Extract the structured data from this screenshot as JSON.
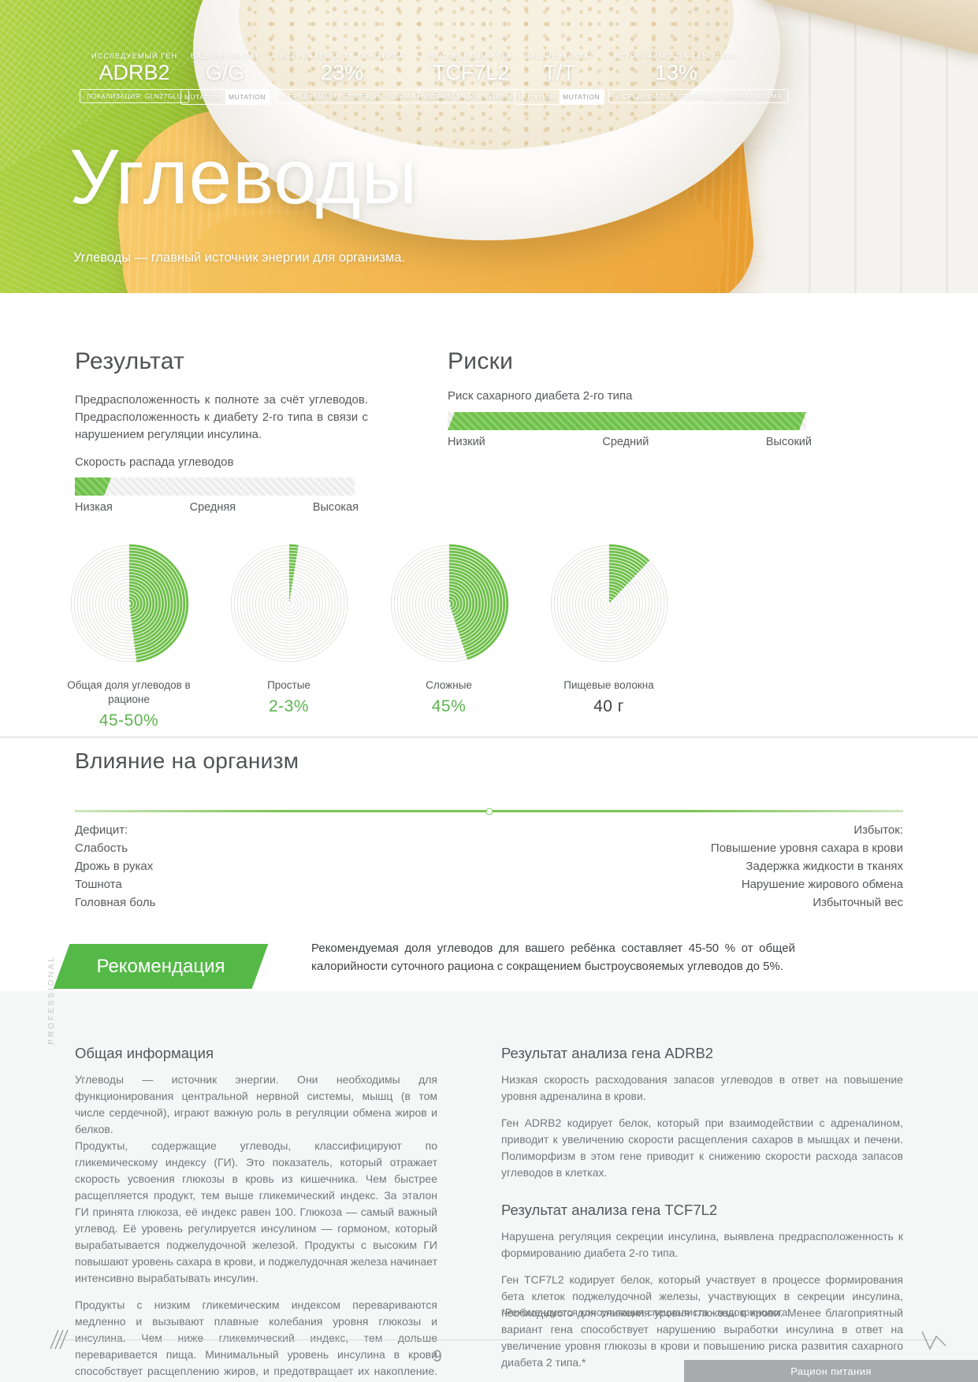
{
  "hero": {
    "title": "Углеводы",
    "subtitle": "Углеводы — главный источник энергии для организма.",
    "genes": [
      {
        "gene_label": "ИССЛЕДУЕМЫЙ ГЕН",
        "gene_name": "ADRB2",
        "localization": "ЛОКАЛИЗАЦИЯ: GLN27GLU",
        "result_label": "ВАШ РЕЗУЛЬТАТ",
        "result_value": "G/G",
        "toggle_left": "MUTATION",
        "toggle_right": "MUTATION",
        "frequency_label": "ВСТРЕЧАЕМОСТЬ ГЕНОТИПА",
        "frequency_value": "23%",
        "population": "В СРЕДНЕМ ПО ПОПУЛЯЦИИ: NORMA / NORMA"
      },
      {
        "gene_label": "ИССЛЕДУЕМЫЙ ГЕН",
        "gene_name": "TCF7L2",
        "localization": "ЛОКАЛИЗАЦИЯ: INTRON3",
        "result_label": "ВАШ РЕЗУЛЬТАТ",
        "result_value": "T/T",
        "toggle_left": "MUTATION",
        "toggle_right": "MUTATION",
        "frequency_label": "ВСТРЕЧАЕМОСТЬ ГЕНОТИПА",
        "frequency_value": "13%",
        "population": "В СРЕДНЕМ ПО ПОПУЛЯЦИИ: NORMA / NORMA"
      }
    ]
  },
  "result": {
    "title": "Результат",
    "text": "Предрасположенность к полноте за счёт углеводов. Предрасположенность к диабету 2-го типа в связи с нарушением регуляции инсулина."
  },
  "risks": {
    "title": "Риски"
  },
  "chart_data": [
    {
      "type": "bar",
      "title": "Скорость распада углеводов",
      "categories": [
        "Низкая",
        "Средняя",
        "Высокая"
      ],
      "values": [
        13
      ],
      "value_meaning": "низкая скорость распада углеводов",
      "range": [
        0,
        100
      ]
    },
    {
      "type": "bar",
      "title": "Риск сахарного диабета 2-го типа",
      "categories": [
        "Низкий",
        "Средний",
        "Высокий"
      ],
      "values": [
        100
      ],
      "value_meaning": "высокий риск",
      "range": [
        0,
        100
      ]
    },
    {
      "type": "pie",
      "title": "Общая доля углеводов в рационе",
      "value_label": "45-50%",
      "percent": 48,
      "color": "#5cb44d"
    },
    {
      "type": "pie",
      "title": "Простые",
      "value_label": "2-3%",
      "percent": 2.5,
      "color": "#5cb44d"
    },
    {
      "type": "pie",
      "title": "Сложные",
      "value_label": "45%",
      "percent": 45,
      "color": "#5cb44d"
    },
    {
      "type": "pie",
      "title": "Пищевые волокна",
      "value_label": "40 г",
      "percent": 12,
      "color": "#414245"
    }
  ],
  "influence": {
    "title": "Влияние на организм",
    "deficit": {
      "title": "Дефицит:",
      "items": [
        "Слабость",
        "Дрожь в руках",
        "Тошнота",
        "Головная боль"
      ]
    },
    "excess": {
      "title": "Избыток:",
      "items": [
        "Повышение уровня сахара в крови",
        "Задержка жидкости в тканях",
        "Нарушение жирового обмена",
        "Избыточный вес"
      ]
    }
  },
  "recommendation": {
    "title": "Рекомендация",
    "text": "Рекомендуемая доля углеводов для вашего ребёнка составляет 45-50 % от общей калорийности суточного рациона с сокращением быстроусвояемых углеводов до 5%."
  },
  "info": {
    "title": "Общая информация",
    "paragraphs": [
      "Углеводы — источник энергии. Они необходимы для функционирования центральной нервной системы, мышц (в том числе сердечной), играют важную роль в регуляции обмена жиров и белков.",
      "Продукты, содержащие углеводы, классифицируют по гликемическому индексу (ГИ). Это показатель, который отражает скорость усвоения глюкозы в кровь из кишечника. Чем быстрее расщепляется продукт, тем выше гликемический индекс. За эталон ГИ принята глюкоза, её индекс равен 100. Глюкоза — самый важный углевод. Её уровень регулируется инсулином — гормоном, который вырабатывается поджелудочной железой. Продукты с высоким ГИ повышают уровень сахара в крови, и поджелудочная железа начинает интенсивно вырабатывать инсулин.",
      "Продукты с низким гликемическим индексом перевариваются медленно и вызывают плавные колебания уровня глюкозы и инсулина. Чем ниже гликемический индекс, тем дольше переваривается пища. Минимальный уровень инсулина в крови способствует расщеплению жиров, и предотвращает их накопление. Медленное усвоение пищи нормализует вес и обеспечивает долгое чувство насыщения."
    ]
  },
  "gene_results": [
    {
      "title": "Результат анализа гена ADRB2",
      "paragraphs": [
        "Низкая скорость расходования запасов углеводов в ответ на повышение уровня адреналина в крови.",
        "Ген ADRB2 кодирует белок, который при взаимодействии с адреналином, приводит к увеличению скорости расщепления сахаров в мышцах и печени. Полиморфизм в этом гене приводит к снижению скорости расхода запасов углеводов в клетках."
      ]
    },
    {
      "title": "Результат анализа гена TCF7L2",
      "paragraphs": [
        "Нарушена регуляция секреции инсулина, выявлена предрасположенность к формированию диабета 2-го типа.",
        "Ген TCF7L2 кодирует белок, который участвует в процессе формирования бета клеток поджелудочной железы, участвующих в секреции инсулина, необходимого для снижения уровня глюкозы в крови. Менее благоприятный вариант гена способствует нарушению выработки инсулина в ответ на увеличение уровня глюкозы в крови и повышению риска развития сахарного диабета 2 типа.*"
      ]
    }
  ],
  "footnote": "*Рекомендуется консультация специалиста - эндокринолога.",
  "side_label": "PROFESSIONAL",
  "footer": {
    "page_number": "9",
    "label": "Рацион питания"
  },
  "colors": {
    "accent_green": "#6fc04a",
    "banner_green": "#55b948",
    "ring_gray": "#d8d8d6",
    "heading_gray": "#515254",
    "body_gray": "#77787a",
    "footer_bar_gray": "#a8aaad"
  }
}
